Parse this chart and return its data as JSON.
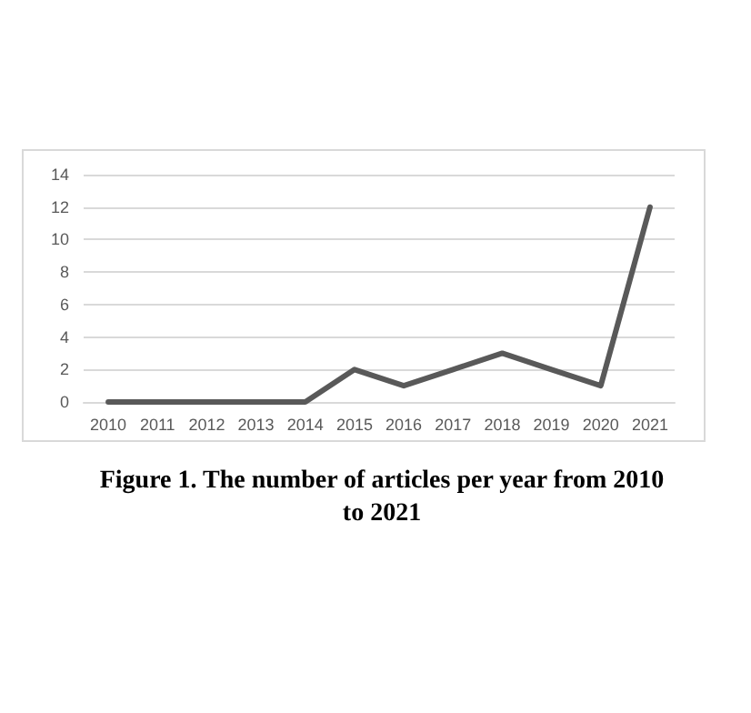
{
  "chart_data": {
    "type": "line",
    "categories": [
      "2010",
      "2011",
      "2012",
      "2013",
      "2014",
      "2015",
      "2016",
      "2017",
      "2018",
      "2019",
      "2020",
      "2021"
    ],
    "series": [
      {
        "color": "#595959",
        "values": [
          0,
          0,
          0,
          0,
          0,
          2,
          1,
          2,
          3,
          2,
          1,
          12
        ]
      }
    ],
    "ylim": [
      0,
      14
    ],
    "yticks": [
      0,
      2,
      4,
      6,
      8,
      10,
      12,
      14
    ],
    "grid": "y",
    "marker": "none",
    "line_style": "solid",
    "annotations": [
      "Figure 1.  The number of articles per year from 2010 to 2021"
    ]
  }
}
